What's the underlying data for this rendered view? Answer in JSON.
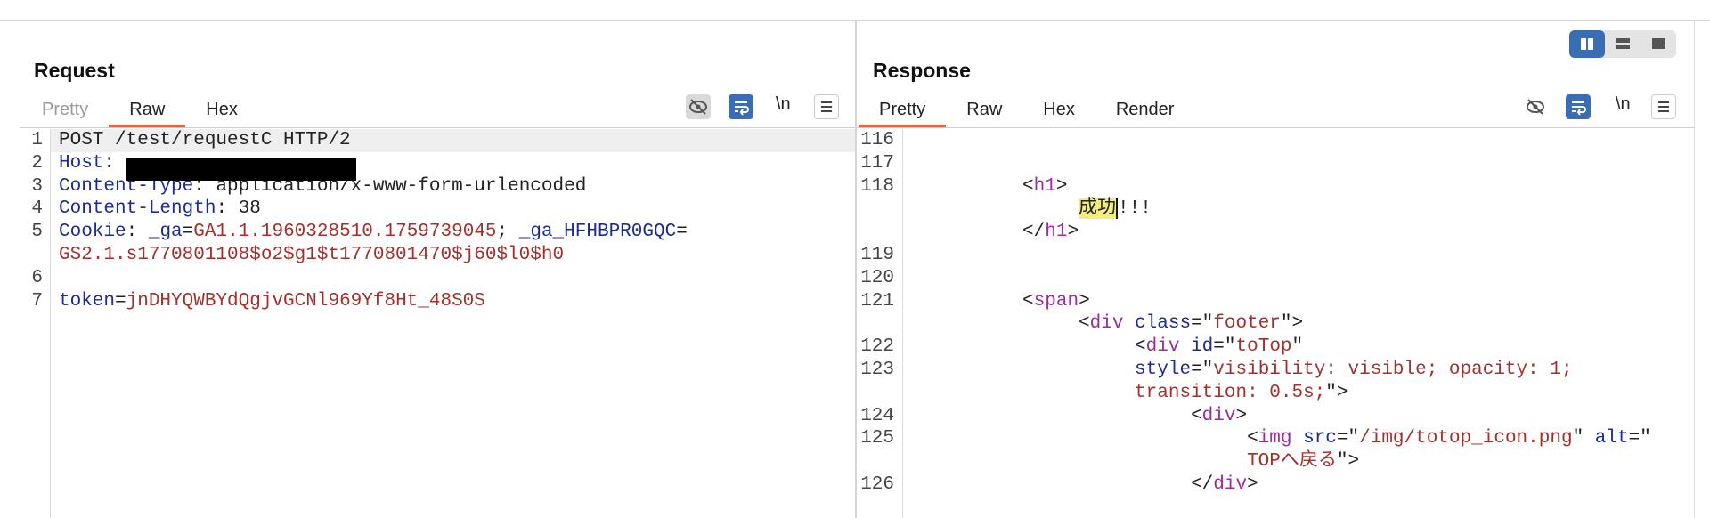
{
  "request": {
    "title": "Request",
    "tabs": [
      "Pretty",
      "Raw",
      "Hex"
    ],
    "active_tab": 1,
    "disabled_tabs": [
      0
    ],
    "newline_button": "\\n",
    "rows": [
      {
        "number": "1",
        "current": true,
        "segments": [
          {
            "text": "POST /test/requestC HTTP/2",
            "color": "#222222"
          }
        ]
      },
      {
        "number": "2",
        "segments": [
          {
            "text": "Host",
            "color": "#1c2c94"
          },
          {
            "text": ": ",
            "color": "#222222"
          }
        ]
      },
      {
        "number": "3",
        "segments": [
          {
            "text": "Content-Type",
            "color": "#1c2c94"
          },
          {
            "text": ": application/x-www-form-urlencoded",
            "color": "#222222"
          }
        ]
      },
      {
        "number": "4",
        "segments": [
          {
            "text": "Content-Length",
            "color": "#1c2c94"
          },
          {
            "text": ": 38",
            "color": "#222222"
          }
        ]
      },
      {
        "number": "5",
        "segments": [
          {
            "text": "Cookie",
            "color": "#1c2c94"
          },
          {
            "text": ": ",
            "color": "#222222"
          },
          {
            "text": "_ga",
            "color": "#1c2c94"
          },
          {
            "text": "=",
            "color": "#222222"
          },
          {
            "text": "GA1.1.1960328510.1759739045",
            "color": "#a3302b"
          },
          {
            "text": "; ",
            "color": "#222222"
          },
          {
            "text": "_ga_HFHBPR0GQC",
            "color": "#1c2c94"
          },
          {
            "text": "=",
            "color": "#222222"
          }
        ]
      },
      {
        "segments": [
          {
            "text": "GS2.1.s1770801108$o2$g1$t1770801470$j60$l0$h0",
            "color": "#a3302b"
          }
        ]
      },
      {
        "number": "6",
        "segments": []
      },
      {
        "number": "7",
        "segments": [
          {
            "text": "token",
            "color": "#1c2c94"
          },
          {
            "text": "=",
            "color": "#222222"
          },
          {
            "text": "jnDHYQWBYdQgjvGCNl969Yf8Ht_48S0S",
            "color": "#a3302b"
          }
        ]
      }
    ]
  },
  "response": {
    "title": "Response",
    "tabs": [
      "Pretty",
      "Raw",
      "Hex",
      "Render"
    ],
    "active_tab": 0,
    "disabled_tabs": [],
    "newline_button": "\\n",
    "rows": [
      {
        "number": "116",
        "segments": []
      },
      {
        "number": "117",
        "segments": []
      },
      {
        "number": "118",
        "segments": [
          {
            "text": "\t\t<",
            "color": "#222222"
          },
          {
            "text": "h1",
            "color": "#9d2ba1"
          },
          {
            "text": ">",
            "color": "#222222"
          }
        ]
      },
      {
        "segments": [
          {
            "text": "\t\t\t",
            "color": "#222222"
          },
          {
            "text": "成功",
            "color": "#222222",
            "highlight": "#f3ee7c"
          },
          {
            "text": "!!!",
            "color": "#222222"
          }
        ]
      },
      {
        "segments": [
          {
            "text": "\t\t</",
            "color": "#222222"
          },
          {
            "text": "h1",
            "color": "#9d2ba1"
          },
          {
            "text": ">",
            "color": "#222222"
          }
        ]
      },
      {
        "number": "119",
        "segments": []
      },
      {
        "number": "120",
        "segments": []
      },
      {
        "number": "121",
        "segments": [
          {
            "text": "\t\t<",
            "color": "#222222"
          },
          {
            "text": "span",
            "color": "#9d2ba1"
          },
          {
            "text": ">",
            "color": "#222222"
          }
        ]
      },
      {
        "segments": [
          {
            "text": "\t\t\t<",
            "color": "#222222"
          },
          {
            "text": "div",
            "color": "#9d2ba1"
          },
          {
            "text": " ",
            "color": "#222222"
          },
          {
            "text": "class",
            "color": "#1c2c94"
          },
          {
            "text": "=\"",
            "color": "#222222"
          },
          {
            "text": "footer",
            "color": "#a3302b"
          },
          {
            "text": "\">",
            "color": "#222222"
          }
        ]
      },
      {
        "number": "122",
        "segments": [
          {
            "text": "\t\t\t\t<",
            "color": "#222222"
          },
          {
            "text": "div",
            "color": "#9d2ba1"
          },
          {
            "text": " ",
            "color": "#222222"
          },
          {
            "text": "id",
            "color": "#1c2c94"
          },
          {
            "text": "=\"",
            "color": "#222222"
          },
          {
            "text": "toTop",
            "color": "#a3302b"
          },
          {
            "text": "\"",
            "color": "#222222"
          }
        ]
      },
      {
        "number": "123",
        "segments": [
          {
            "text": "\t\t\t\t",
            "color": "#222222"
          },
          {
            "text": "style",
            "color": "#1c2c94"
          },
          {
            "text": "=\"",
            "color": "#222222"
          },
          {
            "text": "visibility: visible; opacity: 1;",
            "color": "#a3302b"
          }
        ]
      },
      {
        "segments": [
          {
            "text": "\t\t\t\t",
            "color": "#222222"
          },
          {
            "text": "transition: 0.5s;",
            "color": "#a3302b"
          },
          {
            "text": "\">",
            "color": "#222222"
          }
        ]
      },
      {
        "number": "124",
        "segments": [
          {
            "text": "\t\t\t\t\t<",
            "color": "#222222"
          },
          {
            "text": "div",
            "color": "#9d2ba1"
          },
          {
            "text": ">",
            "color": "#222222"
          }
        ]
      },
      {
        "number": "125",
        "segments": [
          {
            "text": "\t\t\t\t\t\t<",
            "color": "#222222"
          },
          {
            "text": "img",
            "color": "#9d2ba1"
          },
          {
            "text": " ",
            "color": "#222222"
          },
          {
            "text": "src",
            "color": "#1c2c94"
          },
          {
            "text": "=\"",
            "color": "#222222"
          },
          {
            "text": "/img/totop_icon.png",
            "color": "#a3302b"
          },
          {
            "text": "\" ",
            "color": "#222222"
          },
          {
            "text": "alt",
            "color": "#1c2c94"
          },
          {
            "text": "=\"",
            "color": "#222222"
          }
        ]
      },
      {
        "segments": [
          {
            "text": "\t\t\t\t\t\t",
            "color": "#222222"
          },
          {
            "text": "TOPへ戻る",
            "color": "#a3302b"
          },
          {
            "text": "\">",
            "color": "#222222"
          }
        ]
      },
      {
        "number": "126",
        "segments": [
          {
            "text": "\t\t\t\t\t</",
            "color": "#222222"
          },
          {
            "text": "div",
            "color": "#9d2ba1"
          },
          {
            "text": ">",
            "color": "#222222"
          }
        ]
      }
    ]
  }
}
